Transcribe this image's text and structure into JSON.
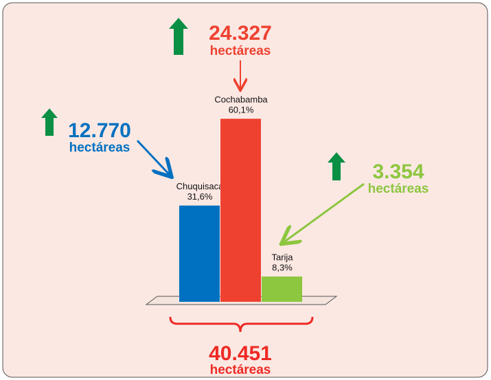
{
  "chart_data": {
    "type": "bar",
    "categories": [
      "Chuquisaca",
      "Cochabamba",
      "Tarija"
    ],
    "values": [
      31.6,
      60.1,
      8.3
    ],
    "value_labels": [
      "31,6%",
      "60,1%",
      "8,3%"
    ],
    "colors": [
      "#0070c0",
      "#ee4130",
      "#8dc63f"
    ],
    "annotations": [
      {
        "text": "12.770",
        "unit": "hectáreas",
        "color": "#0070c0"
      },
      {
        "text": "24.327",
        "unit": "hectáreas",
        "color": "#ee4130"
      },
      {
        "text": "3.354",
        "unit": "hectáreas",
        "color": "#8dc63f"
      }
    ],
    "total": {
      "text": "40.451",
      "unit": "hectáreas",
      "color": "#ee2a24"
    }
  }
}
